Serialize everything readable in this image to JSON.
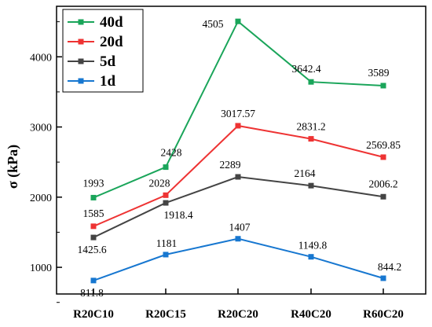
{
  "chart_data": {
    "type": "line",
    "title": "",
    "xlabel": "",
    "ylabel": "σ (kPa)",
    "categories": [
      "R20C10",
      "R20C15",
      "R20C20",
      "R40C20",
      "R60C20"
    ],
    "ylim": [
      620,
      4720
    ],
    "yticks": [
      1000,
      2000,
      3000,
      4000
    ],
    "grid": false,
    "legend_position": "top-left",
    "series": [
      {
        "name": "40d",
        "color": "#1aa55a",
        "values": [
          1993,
          2428,
          4505,
          3642.4,
          3589
        ],
        "labels": [
          "1993",
          "2428",
          "4505",
          "3642.4",
          "3589"
        ]
      },
      {
        "name": "20d",
        "color": "#ee3333",
        "values": [
          1585,
          2028,
          3017.57,
          2831.2,
          2569.85
        ],
        "labels": [
          "1585",
          "2028",
          "3017.57",
          "2831.2",
          "2569.85"
        ]
      },
      {
        "name": "5d",
        "color": "#444444",
        "values": [
          1425.6,
          1918.4,
          2289,
          2164,
          2006.2
        ],
        "labels": [
          "1425.6",
          "1918.4",
          "2289",
          "2164",
          "2006.2"
        ]
      },
      {
        "name": "1d",
        "color": "#1777d0",
        "values": [
          811.8,
          1181,
          1407,
          1149.8,
          844.2
        ],
        "labels": [
          "811.8",
          "1181",
          "1407",
          "1149.8",
          "844.2"
        ]
      }
    ]
  }
}
